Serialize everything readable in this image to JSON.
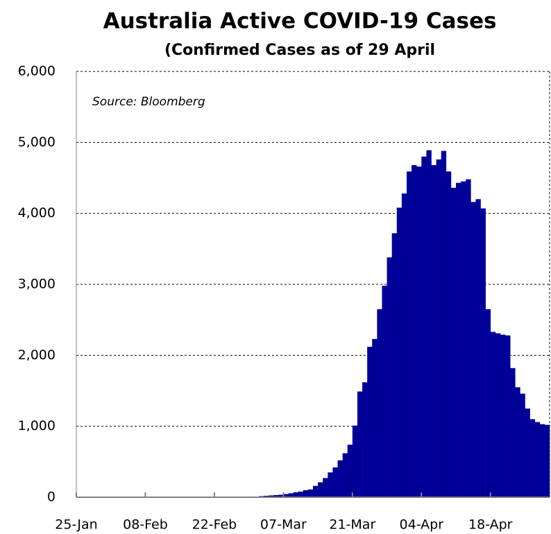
{
  "chart_data": {
    "type": "bar",
    "title": "Australia Active COVID-19 Cases",
    "subtitle": "(Confirmed Cases as of 29 April",
    "annotation": "Source: Bloomberg",
    "categories": [
      "25-Jan",
      null,
      null,
      null,
      null,
      null,
      null,
      null,
      null,
      null,
      null,
      null,
      null,
      null,
      "08-Feb",
      null,
      null,
      null,
      null,
      null,
      null,
      null,
      null,
      null,
      null,
      null,
      null,
      null,
      "22-Feb",
      null,
      null,
      null,
      null,
      null,
      null,
      null,
      null,
      null,
      null,
      null,
      null,
      null,
      "07-Mar",
      null,
      null,
      null,
      null,
      null,
      null,
      null,
      null,
      null,
      null,
      null,
      null,
      null,
      "21-Mar",
      null,
      null,
      null,
      null,
      null,
      null,
      null,
      null,
      null,
      null,
      null,
      null,
      null,
      "04-Apr",
      null,
      null,
      null,
      null,
      null,
      null,
      null,
      null,
      null,
      null,
      null,
      null,
      null,
      "18-Apr",
      null,
      null,
      null,
      null,
      null,
      null,
      null,
      null,
      null,
      null,
      null
    ],
    "values": [
      0,
      0,
      0,
      0,
      0,
      0,
      0,
      0,
      0,
      0,
      0,
      0,
      0,
      0,
      0,
      0,
      0,
      0,
      0,
      0,
      0,
      0,
      0,
      0,
      0,
      0,
      0,
      0,
      0,
      0,
      0,
      0,
      0,
      0,
      0,
      0,
      10,
      15,
      20,
      25,
      30,
      35,
      45,
      55,
      70,
      80,
      100,
      110,
      160,
      210,
      270,
      350,
      420,
      520,
      620,
      740,
      1010,
      1490,
      1620,
      2120,
      2230,
      2650,
      2980,
      3380,
      3720,
      4080,
      4280,
      4590,
      4680,
      4660,
      4800,
      4890,
      4680,
      4760,
      4880,
      4590,
      4360,
      4430,
      4450,
      4480,
      4160,
      4200,
      4070,
      2650,
      2330,
      2310,
      2290,
      2280,
      1820,
      1550,
      1460,
      1250,
      1100,
      1060,
      1030,
      1020
    ],
    "color": "#000099",
    "ylim": [
      0,
      6000
    ],
    "yticks": [
      0,
      {
        "value": 1000,
        "label": "1,000"
      },
      {
        "value": 2000,
        "label": "2,000"
      },
      {
        "value": 3000,
        "label": "3,000"
      },
      {
        "value": 4000,
        "label": "4,000"
      },
      {
        "value": 5000,
        "label": "5,000"
      },
      {
        "value": 6000,
        "label": "6,000"
      }
    ],
    "grid": true
  }
}
